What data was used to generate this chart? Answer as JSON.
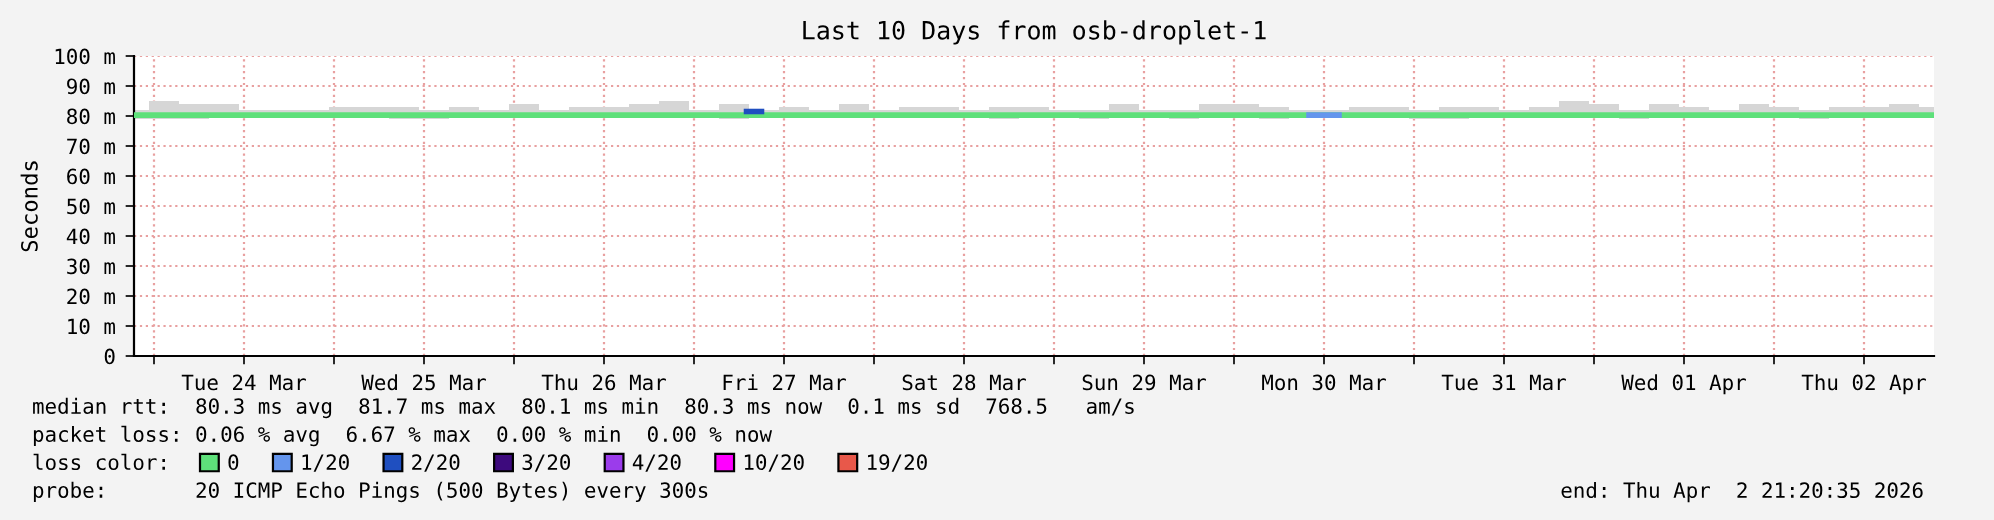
{
  "chart_data": {
    "type": "line",
    "title": "Last 10 Days from osb-droplet-1",
    "ylabel": "Seconds",
    "xlim": [
      "2026-03-23T21:20",
      "2026-04-02T21:20"
    ],
    "xticks": [
      {
        "value": "2026-03-24T00:00",
        "label": null
      },
      {
        "value": "2026-03-24T12:00",
        "label": "Tue 24 Mar"
      },
      {
        "value": "2026-03-25T00:00",
        "label": null
      },
      {
        "value": "2026-03-25T12:00",
        "label": "Wed 25 Mar"
      },
      {
        "value": "2026-03-26T00:00",
        "label": null
      },
      {
        "value": "2026-03-26T12:00",
        "label": "Thu 26 Mar"
      },
      {
        "value": "2026-03-27T00:00",
        "label": null
      },
      {
        "value": "2026-03-27T12:00",
        "label": "Fri 27 Mar"
      },
      {
        "value": "2026-03-28T00:00",
        "label": null
      },
      {
        "value": "2026-03-28T12:00",
        "label": "Sat 28 Mar"
      },
      {
        "value": "2026-03-29T00:00",
        "label": null
      },
      {
        "value": "2026-03-29T12:00",
        "label": "Sun 29 Mar"
      },
      {
        "value": "2026-03-30T00:00",
        "label": null
      },
      {
        "value": "2026-03-30T12:00",
        "label": "Mon 30 Mar"
      },
      {
        "value": "2026-03-31T00:00",
        "label": null
      },
      {
        "value": "2026-03-31T12:00",
        "label": "Tue 31 Mar"
      },
      {
        "value": "2026-04-01T00:00",
        "label": null
      },
      {
        "value": "2026-04-01T12:00",
        "label": "Wed 01 Apr"
      },
      {
        "value": "2026-04-02T00:00",
        "label": null
      },
      {
        "value": "2026-04-02T12:00",
        "label": "Thu 02 Apr"
      }
    ],
    "ylim": [
      0,
      100
    ],
    "yticks": [
      0,
      {
        "value": 10,
        "label": "10 m"
      },
      {
        "value": 20,
        "label": "20 m"
      },
      {
        "value": 30,
        "label": "30 m"
      },
      {
        "value": 40,
        "label": "40 m"
      },
      {
        "value": 50,
        "label": "50 m"
      },
      {
        "value": 60,
        "label": "60 m"
      },
      {
        "value": 70,
        "label": "70 m"
      },
      {
        "value": 80,
        "label": "80 m"
      },
      {
        "value": 90,
        "label": "90 m"
      },
      {
        "value": 100,
        "label": "100 m"
      }
    ],
    "grid": true,
    "legend": "bottom left",
    "marker": "none",
    "line_style": "solid",
    "x": [
      "2026-03-23T21:20",
      "2026-03-24T01:20",
      "2026-03-24T05:20",
      "2026-03-24T09:20",
      "2026-03-24T13:20",
      "2026-03-24T17:20",
      "2026-03-24T21:20",
      "2026-03-25T01:20",
      "2026-03-25T05:20",
      "2026-03-25T09:20",
      "2026-03-25T13:20",
      "2026-03-25T17:20",
      "2026-03-25T21:20",
      "2026-03-26T01:20",
      "2026-03-26T05:20",
      "2026-03-26T09:20",
      "2026-03-26T13:20",
      "2026-03-26T17:20",
      "2026-03-26T21:20",
      "2026-03-27T01:20",
      "2026-03-27T05:20",
      "2026-03-27T09:20",
      "2026-03-27T13:20",
      "2026-03-27T17:20",
      "2026-03-27T21:20",
      "2026-03-28T01:20",
      "2026-03-28T05:20",
      "2026-03-28T09:20",
      "2026-03-28T13:20",
      "2026-03-28T17:20",
      "2026-03-28T21:20",
      "2026-03-29T01:20",
      "2026-03-29T05:20",
      "2026-03-29T09:20",
      "2026-03-29T13:20",
      "2026-03-29T17:20",
      "2026-03-29T21:20",
      "2026-03-30T01:20",
      "2026-03-30T05:20",
      "2026-03-30T09:20",
      "2026-03-30T13:20",
      "2026-03-30T17:20",
      "2026-03-30T21:20",
      "2026-03-31T01:20",
      "2026-03-31T05:20",
      "2026-03-31T09:20",
      "2026-03-31T13:20",
      "2026-03-31T17:20",
      "2026-03-31T21:20",
      "2026-04-01T01:20",
      "2026-04-01T05:20",
      "2026-04-01T09:20",
      "2026-04-01T13:20",
      "2026-04-01T17:20",
      "2026-04-01T21:20",
      "2026-04-02T01:20",
      "2026-04-02T05:20",
      "2026-04-02T09:20",
      "2026-04-02T13:20",
      "2026-04-02T17:20",
      "2026-04-02T21:20"
    ],
    "series": [
      {
        "name": "0",
        "color": "#5ee07a",
        "values": [
          80.3,
          80.3,
          80.3,
          80.3,
          80.3,
          80.3,
          80.3,
          80.3,
          80.3,
          80.3,
          80.3,
          80.3,
          80.3,
          80.3,
          80.3,
          80.3,
          80.3,
          80.3,
          80.3,
          80.3,
          80.3,
          80.3,
          80.3,
          80.3,
          80.3,
          80.3,
          80.3,
          80.3,
          80.3,
          80.3,
          80.3,
          80.3,
          80.3,
          80.3,
          80.3,
          80.3,
          80.3,
          80.3,
          80.3,
          80.3,
          80.3,
          80.3,
          80.3,
          80.3,
          80.3,
          80.3,
          80.3,
          80.3,
          80.3,
          80.3,
          80.3,
          80.3,
          80.3,
          80.3,
          80.3,
          80.3,
          80.3,
          80.3,
          80.3,
          80.3,
          80.3
        ],
        "lower": [
          79,
          79,
          79,
          79.5,
          79.5,
          80,
          79.5,
          79.5,
          80,
          79,
          79,
          79.5,
          80,
          80,
          79.5,
          79.5,
          80,
          79.5,
          79.5,
          79.5,
          79,
          79.5,
          80,
          80,
          79.5,
          80,
          79.5,
          80,
          79.5,
          79,
          79.5,
          80,
          79,
          79.5,
          79.5,
          79,
          79.5,
          79.5,
          79,
          79.5,
          80,
          79.5,
          79.5,
          79,
          79,
          79.5,
          79.5,
          80,
          79.5,
          80,
          79,
          79.5,
          79.5,
          80,
          80,
          79.5,
          79,
          79.5,
          80,
          79.5,
          80
        ],
        "upper": [
          82,
          85,
          84,
          84,
          82,
          82,
          82,
          83,
          83,
          83,
          82,
          83,
          82,
          84,
          82,
          83,
          83,
          84,
          85,
          82,
          84,
          82,
          83,
          82,
          84,
          82,
          83,
          83,
          82,
          83,
          83,
          82,
          82,
          84,
          82,
          82,
          84,
          84,
          83,
          82,
          82,
          83,
          83,
          82,
          83,
          83,
          82,
          83,
          85,
          84,
          82,
          84,
          83,
          82,
          84,
          83,
          82,
          83,
          83,
          84,
          83
        ]
      },
      {
        "name": "1/20",
        "color": "#6495ed",
        "x": [
          "2026-03-30T10:00",
          "2026-03-30T14:00"
        ],
        "values": [
          80.3,
          80.3
        ]
      },
      {
        "name": "2/20",
        "color": "#1f4fc0",
        "x": [
          "2026-03-27T07:00",
          "2026-03-27T09:00"
        ],
        "values": [
          81.5,
          81.5
        ]
      },
      {
        "name": "3/20",
        "color": "#3d0a7d",
        "values": [
          null,
          null,
          null,
          null,
          null,
          null,
          null,
          null,
          null,
          null,
          null,
          null,
          null,
          null,
          null,
          null,
          null,
          null,
          null,
          null,
          null,
          null,
          null,
          null,
          null,
          null,
          null,
          null,
          null,
          null,
          null,
          null,
          null,
          null,
          null,
          null,
          null,
          null,
          null,
          null,
          null,
          null,
          null,
          null,
          null,
          null,
          null,
          null,
          null,
          null,
          null,
          null,
          null,
          null,
          null,
          null,
          null,
          null,
          null,
          null,
          null
        ]
      },
      {
        "name": "4/20",
        "color": "#9b3ceb",
        "values": [
          null,
          null,
          null,
          null,
          null,
          null,
          null,
          null,
          null,
          null,
          null,
          null,
          null,
          null,
          null,
          null,
          null,
          null,
          null,
          null,
          null,
          null,
          null,
          null,
          null,
          null,
          null,
          null,
          null,
          null,
          null,
          null,
          null,
          null,
          null,
          null,
          null,
          null,
          null,
          null,
          null,
          null,
          null,
          null,
          null,
          null,
          null,
          null,
          null,
          null,
          null,
          null,
          null,
          null,
          null,
          null,
          null,
          null,
          null,
          null,
          null
        ]
      },
      {
        "name": "10/20",
        "color": "#ff00ff",
        "values": [
          null,
          null,
          null,
          null,
          null,
          null,
          null,
          null,
          null,
          null,
          null,
          null,
          null,
          null,
          null,
          null,
          null,
          null,
          null,
          null,
          null,
          null,
          null,
          null,
          null,
          null,
          null,
          null,
          null,
          null,
          null,
          null,
          null,
          null,
          null,
          null,
          null,
          null,
          null,
          null,
          null,
          null,
          null,
          null,
          null,
          null,
          null,
          null,
          null,
          null,
          null,
          null,
          null,
          null,
          null,
          null,
          null,
          null,
          null,
          null,
          null
        ]
      },
      {
        "name": "19/20",
        "color": "#e8584a",
        "values": [
          null,
          null,
          null,
          null,
          null,
          null,
          null,
          null,
          null,
          null,
          null,
          null,
          null,
          null,
          null,
          null,
          null,
          null,
          null,
          null,
          null,
          null,
          null,
          null,
          null,
          null,
          null,
          null,
          null,
          null,
          null,
          null,
          null,
          null,
          null,
          null,
          null,
          null,
          null,
          null,
          null,
          null,
          null,
          null,
          null,
          null,
          null,
          null,
          null,
          null,
          null,
          null,
          null,
          null,
          null,
          null,
          null,
          null,
          null,
          null,
          null
        ]
      }
    ],
    "annotations": [
      "median rtt:  80.3 ms avg  81.7 ms max  80.1 ms min  80.3 ms now  0.1 ms sd  768.5   am/s",
      "packet loss: 0.06 % avg  6.67 % max  0.00 % min  0.00 % now",
      "loss color:",
      "probe:       20 ICMP Echo Pings (500 Bytes) every 300s",
      "end: Thu Apr  2 21:20:35 2026"
    ]
  }
}
